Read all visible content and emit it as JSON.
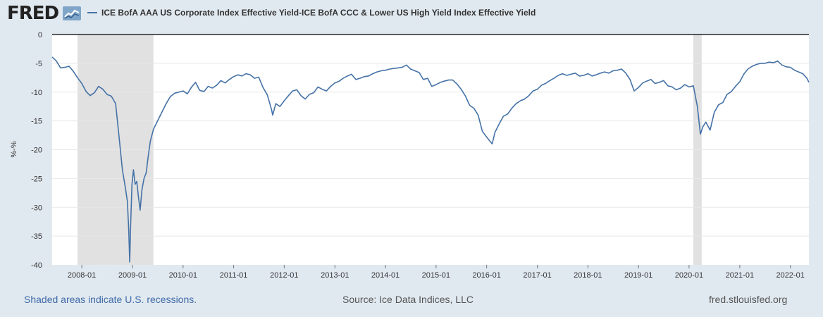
{
  "header": {
    "logo_text": "FRED",
    "logo_icon": "chart-line-icon",
    "legend_label": "ICE BofA AAA US Corporate Index Effective Yield-ICE BofA CCC & Lower US High Yield Index Effective Yield"
  },
  "footer": {
    "recession_note": "Shaded areas indicate U.S. recessions.",
    "source": "Source: Ice Data Indices, LLC",
    "site": "fred.stlouisfed.org"
  },
  "colors": {
    "series": "#4572a7",
    "recession": "#e1e1e1",
    "background": "#e1e9f0",
    "plot": "#ffffff",
    "grid": "#e8e8e8"
  },
  "chart_data": {
    "type": "line",
    "title": "",
    "xlabel": "",
    "ylabel": "%-%",
    "ylim": [
      -40,
      0
    ],
    "yticks": [
      0,
      -5,
      -10,
      -15,
      -20,
      -25,
      -30,
      -35,
      -40
    ],
    "xlim": [
      "2007-06-01",
      "2022-05-15"
    ],
    "xticks": [
      "2008-01",
      "2009-01",
      "2010-01",
      "2011-01",
      "2012-01",
      "2013-01",
      "2014-01",
      "2015-01",
      "2016-01",
      "2017-01",
      "2018-01",
      "2019-01",
      "2020-01",
      "2021-01",
      "2022-01"
    ],
    "grid": true,
    "legend_position": "top",
    "recessions": [
      {
        "start": "2007-12-01",
        "end": "2009-06-01"
      },
      {
        "start": "2020-02-01",
        "end": "2020-04-01"
      }
    ],
    "series": [
      {
        "name": "ICE BofA AAA US Corporate Index Effective Yield-ICE BofA CCC & Lower US High Yield Index Effective Yield",
        "points": [
          [
            "2007-06-01",
            -3.9
          ],
          [
            "2007-07-01",
            -4.6
          ],
          [
            "2007-08-01",
            -5.8
          ],
          [
            "2007-09-01",
            -5.7
          ],
          [
            "2007-10-01",
            -5.5
          ],
          [
            "2007-11-01",
            -6.4
          ],
          [
            "2007-12-01",
            -7.5
          ],
          [
            "2008-01-01",
            -8.5
          ],
          [
            "2008-02-01",
            -9.9
          ],
          [
            "2008-03-01",
            -10.6
          ],
          [
            "2008-04-01",
            -10.1
          ],
          [
            "2008-05-01",
            -9.0
          ],
          [
            "2008-06-01",
            -9.5
          ],
          [
            "2008-07-01",
            -10.4
          ],
          [
            "2008-08-01",
            -10.7
          ],
          [
            "2008-09-01",
            -12.0
          ],
          [
            "2008-10-01",
            -19.0
          ],
          [
            "2008-10-20",
            -23.5
          ],
          [
            "2008-11-10",
            -26.5
          ],
          [
            "2008-11-25",
            -29.0
          ],
          [
            "2008-12-05",
            -34.0
          ],
          [
            "2008-12-12",
            -39.5
          ],
          [
            "2008-12-18",
            -33.5
          ],
          [
            "2008-12-28",
            -26.0
          ],
          [
            "2009-01-08",
            -23.5
          ],
          [
            "2009-01-20",
            -26.0
          ],
          [
            "2009-02-01",
            -25.5
          ],
          [
            "2009-02-12",
            -28.0
          ],
          [
            "2009-02-25",
            -30.5
          ],
          [
            "2009-03-10",
            -27.0
          ],
          [
            "2009-03-25",
            -25.0
          ],
          [
            "2009-04-10",
            -24.0
          ],
          [
            "2009-04-25",
            -21.0
          ],
          [
            "2009-05-10",
            -18.5
          ],
          [
            "2009-06-01",
            -16.5
          ],
          [
            "2009-07-01",
            -15.0
          ],
          [
            "2009-08-01",
            -13.5
          ],
          [
            "2009-09-01",
            -12.0
          ],
          [
            "2009-10-01",
            -10.8
          ],
          [
            "2009-11-01",
            -10.2
          ],
          [
            "2009-12-01",
            -10.0
          ],
          [
            "2010-01-01",
            -9.8
          ],
          [
            "2010-02-01",
            -10.3
          ],
          [
            "2010-03-01",
            -9.2
          ],
          [
            "2010-04-01",
            -8.3
          ],
          [
            "2010-05-01",
            -9.7
          ],
          [
            "2010-06-01",
            -9.9
          ],
          [
            "2010-07-01",
            -9.0
          ],
          [
            "2010-08-01",
            -9.3
          ],
          [
            "2010-09-01",
            -8.8
          ],
          [
            "2010-10-01",
            -8.0
          ],
          [
            "2010-11-01",
            -8.4
          ],
          [
            "2010-12-01",
            -7.8
          ],
          [
            "2011-01-01",
            -7.3
          ],
          [
            "2011-02-01",
            -7.0
          ],
          [
            "2011-03-01",
            -7.2
          ],
          [
            "2011-04-01",
            -6.8
          ],
          [
            "2011-05-01",
            -7.0
          ],
          [
            "2011-06-01",
            -7.6
          ],
          [
            "2011-07-01",
            -7.4
          ],
          [
            "2011-08-01",
            -9.2
          ],
          [
            "2011-09-01",
            -10.5
          ],
          [
            "2011-10-01",
            -13.0
          ],
          [
            "2011-10-10",
            -14.0
          ],
          [
            "2011-11-01",
            -12.0
          ],
          [
            "2011-12-01",
            -12.5
          ],
          [
            "2012-01-01",
            -11.5
          ],
          [
            "2012-02-01",
            -10.6
          ],
          [
            "2012-03-01",
            -9.8
          ],
          [
            "2012-04-01",
            -9.6
          ],
          [
            "2012-05-01",
            -10.6
          ],
          [
            "2012-06-01",
            -11.2
          ],
          [
            "2012-07-01",
            -10.4
          ],
          [
            "2012-08-01",
            -10.1
          ],
          [
            "2012-09-01",
            -9.1
          ],
          [
            "2012-10-01",
            -9.5
          ],
          [
            "2012-11-01",
            -9.8
          ],
          [
            "2012-12-01",
            -9.0
          ],
          [
            "2013-01-01",
            -8.4
          ],
          [
            "2013-02-01",
            -8.1
          ],
          [
            "2013-03-01",
            -7.6
          ],
          [
            "2013-04-01",
            -7.2
          ],
          [
            "2013-05-01",
            -6.9
          ],
          [
            "2013-06-01",
            -7.8
          ],
          [
            "2013-07-01",
            -7.6
          ],
          [
            "2013-08-01",
            -7.3
          ],
          [
            "2013-09-01",
            -7.2
          ],
          [
            "2013-10-01",
            -6.8
          ],
          [
            "2013-11-01",
            -6.5
          ],
          [
            "2013-12-01",
            -6.3
          ],
          [
            "2014-01-01",
            -6.2
          ],
          [
            "2014-02-01",
            -6.0
          ],
          [
            "2014-03-01",
            -5.9
          ],
          [
            "2014-04-01",
            -5.8
          ],
          [
            "2014-05-01",
            -5.7
          ],
          [
            "2014-06-01",
            -5.3
          ],
          [
            "2014-07-01",
            -6.0
          ],
          [
            "2014-08-01",
            -6.3
          ],
          [
            "2014-09-01",
            -6.6
          ],
          [
            "2014-10-01",
            -7.8
          ],
          [
            "2014-11-01",
            -7.6
          ],
          [
            "2014-12-01",
            -9.0
          ],
          [
            "2015-01-01",
            -8.7
          ],
          [
            "2015-02-01",
            -8.3
          ],
          [
            "2015-03-01",
            -8.1
          ],
          [
            "2015-04-01",
            -7.9
          ],
          [
            "2015-05-01",
            -7.9
          ],
          [
            "2015-06-01",
            -8.6
          ],
          [
            "2015-07-01",
            -9.5
          ],
          [
            "2015-08-01",
            -10.7
          ],
          [
            "2015-09-01",
            -12.3
          ],
          [
            "2015-10-01",
            -12.8
          ],
          [
            "2015-11-01",
            -14.0
          ],
          [
            "2015-12-01",
            -16.8
          ],
          [
            "2016-01-01",
            -17.8
          ],
          [
            "2016-02-10",
            -19.0
          ],
          [
            "2016-03-01",
            -17.0
          ],
          [
            "2016-04-01",
            -15.5
          ],
          [
            "2016-05-01",
            -14.2
          ],
          [
            "2016-06-01",
            -13.8
          ],
          [
            "2016-07-01",
            -12.8
          ],
          [
            "2016-08-01",
            -12.0
          ],
          [
            "2016-09-01",
            -11.5
          ],
          [
            "2016-10-01",
            -11.2
          ],
          [
            "2016-11-01",
            -10.6
          ],
          [
            "2016-12-01",
            -9.8
          ],
          [
            "2017-01-01",
            -9.5
          ],
          [
            "2017-02-01",
            -8.8
          ],
          [
            "2017-03-01",
            -8.5
          ],
          [
            "2017-04-01",
            -8.0
          ],
          [
            "2017-05-01",
            -7.6
          ],
          [
            "2017-06-01",
            -7.1
          ],
          [
            "2017-07-01",
            -6.8
          ],
          [
            "2017-08-01",
            -7.1
          ],
          [
            "2017-09-01",
            -6.9
          ],
          [
            "2017-10-01",
            -6.7
          ],
          [
            "2017-11-01",
            -7.2
          ],
          [
            "2017-12-01",
            -7.1
          ],
          [
            "2018-01-01",
            -6.8
          ],
          [
            "2018-02-01",
            -7.2
          ],
          [
            "2018-03-01",
            -7.0
          ],
          [
            "2018-04-01",
            -6.7
          ],
          [
            "2018-05-01",
            -6.5
          ],
          [
            "2018-06-01",
            -6.7
          ],
          [
            "2018-07-01",
            -6.3
          ],
          [
            "2018-08-01",
            -6.2
          ],
          [
            "2018-09-01",
            -6.0
          ],
          [
            "2018-10-01",
            -6.7
          ],
          [
            "2018-11-01",
            -7.8
          ],
          [
            "2018-12-01",
            -9.8
          ],
          [
            "2019-01-01",
            -9.2
          ],
          [
            "2019-02-01",
            -8.4
          ],
          [
            "2019-03-01",
            -8.1
          ],
          [
            "2019-04-01",
            -7.8
          ],
          [
            "2019-05-01",
            -8.5
          ],
          [
            "2019-06-01",
            -8.3
          ],
          [
            "2019-07-01",
            -8.0
          ],
          [
            "2019-08-01",
            -8.9
          ],
          [
            "2019-09-01",
            -9.1
          ],
          [
            "2019-10-01",
            -9.6
          ],
          [
            "2019-11-01",
            -9.3
          ],
          [
            "2019-12-01",
            -8.7
          ],
          [
            "2020-01-01",
            -9.1
          ],
          [
            "2020-02-01",
            -8.9
          ],
          [
            "2020-03-01",
            -12.5
          ],
          [
            "2020-03-23",
            -17.3
          ],
          [
            "2020-04-10",
            -16.0
          ],
          [
            "2020-05-01",
            -15.2
          ],
          [
            "2020-06-01",
            -16.6
          ],
          [
            "2020-07-01",
            -13.5
          ],
          [
            "2020-08-01",
            -12.2
          ],
          [
            "2020-09-01",
            -11.8
          ],
          [
            "2020-10-01",
            -10.4
          ],
          [
            "2020-11-01",
            -9.9
          ],
          [
            "2020-12-01",
            -9.0
          ],
          [
            "2021-01-01",
            -8.2
          ],
          [
            "2021-02-01",
            -6.8
          ],
          [
            "2021-03-01",
            -6.0
          ],
          [
            "2021-04-01",
            -5.5
          ],
          [
            "2021-05-01",
            -5.2
          ],
          [
            "2021-06-01",
            -5.0
          ],
          [
            "2021-07-01",
            -5.0
          ],
          [
            "2021-08-01",
            -4.8
          ],
          [
            "2021-09-01",
            -4.9
          ],
          [
            "2021-10-01",
            -4.6
          ],
          [
            "2021-11-01",
            -5.3
          ],
          [
            "2021-12-01",
            -5.6
          ],
          [
            "2022-01-01",
            -5.7
          ],
          [
            "2022-02-01",
            -6.2
          ],
          [
            "2022-03-01",
            -6.5
          ],
          [
            "2022-04-01",
            -6.8
          ],
          [
            "2022-05-01",
            -7.6
          ],
          [
            "2022-05-15",
            -8.3
          ]
        ]
      }
    ]
  }
}
